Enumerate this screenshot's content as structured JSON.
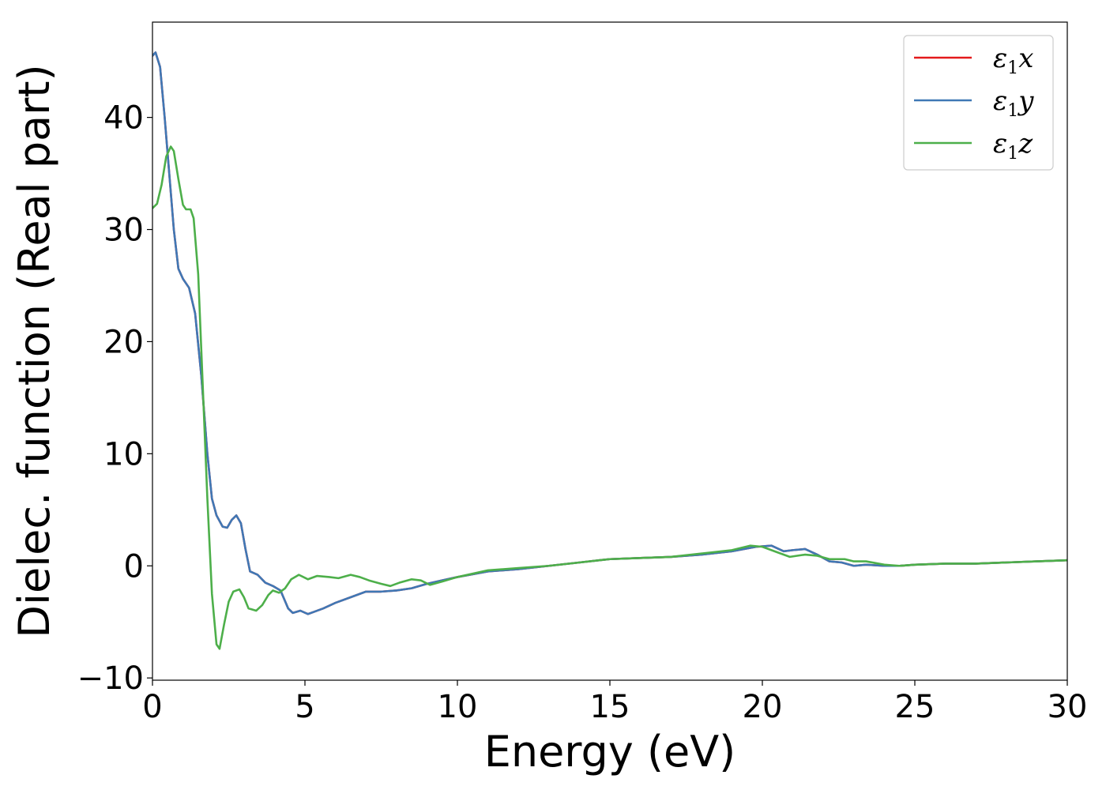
{
  "chart_data": {
    "type": "line",
    "title": "",
    "xlabel": "Energy (eV)",
    "ylabel": "Dielec. function (Real part)",
    "xlim": [
      0,
      30
    ],
    "ylim": [
      -10.2,
      48.5
    ],
    "x_ticks": [
      0,
      5,
      10,
      15,
      20,
      25,
      30
    ],
    "x_tick_labels": [
      "0",
      "5",
      "10",
      "15",
      "20",
      "25",
      "30"
    ],
    "y_ticks": [
      -10,
      0,
      10,
      20,
      30,
      40
    ],
    "y_tick_labels": [
      "−10",
      "0",
      "10",
      "20",
      "30",
      "40"
    ],
    "grid": false,
    "legend_position": "top-right",
    "series": [
      {
        "name": "ε1x",
        "legend": {
          "base": "ε",
          "sub": "1",
          "tail": "x"
        },
        "color": "#e41a1c",
        "points": [
          [
            0,
            45.5
          ],
          [
            0.1,
            45.8
          ],
          [
            0.25,
            44.5
          ],
          [
            0.4,
            40
          ],
          [
            0.55,
            35
          ],
          [
            0.7,
            30
          ],
          [
            0.85,
            26.5
          ],
          [
            1.0,
            25.6
          ],
          [
            1.2,
            24.8
          ],
          [
            1.4,
            22.5
          ],
          [
            1.6,
            17
          ],
          [
            1.8,
            10
          ],
          [
            1.95,
            6
          ],
          [
            2.1,
            4.5
          ],
          [
            2.3,
            3.5
          ],
          [
            2.45,
            3.4
          ],
          [
            2.6,
            4.1
          ],
          [
            2.75,
            4.5
          ],
          [
            2.9,
            3.8
          ],
          [
            3.05,
            1.5
          ],
          [
            3.2,
            -0.5
          ],
          [
            3.45,
            -0.8
          ],
          [
            3.7,
            -1.5
          ],
          [
            3.95,
            -1.8
          ],
          [
            4.2,
            -2.2
          ],
          [
            4.45,
            -3.8
          ],
          [
            4.6,
            -4.2
          ],
          [
            4.85,
            -4.0
          ],
          [
            5.1,
            -4.3
          ],
          [
            5.3,
            -4.1
          ],
          [
            5.6,
            -3.8
          ],
          [
            6.0,
            -3.3
          ],
          [
            6.5,
            -2.8
          ],
          [
            7.0,
            -2.3
          ],
          [
            7.5,
            -2.3
          ],
          [
            8.0,
            -2.2
          ],
          [
            8.5,
            -2.0
          ],
          [
            9.0,
            -1.6
          ],
          [
            9.5,
            -1.3
          ],
          [
            10.0,
            -1.0
          ],
          [
            11,
            -0.5
          ],
          [
            12,
            -0.3
          ],
          [
            13,
            0.0
          ],
          [
            14,
            0.3
          ],
          [
            15,
            0.6
          ],
          [
            16,
            0.7
          ],
          [
            17,
            0.8
          ],
          [
            18,
            1.0
          ],
          [
            19,
            1.3
          ],
          [
            19.8,
            1.7
          ],
          [
            20.3,
            1.8
          ],
          [
            20.7,
            1.3
          ],
          [
            21.0,
            1.4
          ],
          [
            21.4,
            1.5
          ],
          [
            21.8,
            1.0
          ],
          [
            22.2,
            0.4
          ],
          [
            22.6,
            0.3
          ],
          [
            23.0,
            0.0
          ],
          [
            23.4,
            0.1
          ],
          [
            24.0,
            0.0
          ],
          [
            24.5,
            0.0
          ],
          [
            25,
            0.1
          ],
          [
            26,
            0.2
          ],
          [
            27,
            0.2
          ],
          [
            28,
            0.3
          ],
          [
            29,
            0.4
          ],
          [
            30,
            0.5
          ]
        ]
      },
      {
        "name": "ε1y",
        "legend": {
          "base": "ε",
          "sub": "1",
          "tail": "y"
        },
        "color": "#3f78b5",
        "points": [
          [
            0,
            45.5
          ],
          [
            0.1,
            45.8
          ],
          [
            0.25,
            44.5
          ],
          [
            0.4,
            40
          ],
          [
            0.55,
            35
          ],
          [
            0.7,
            30
          ],
          [
            0.85,
            26.5
          ],
          [
            1.0,
            25.6
          ],
          [
            1.2,
            24.8
          ],
          [
            1.4,
            22.5
          ],
          [
            1.6,
            17
          ],
          [
            1.8,
            10
          ],
          [
            1.95,
            6
          ],
          [
            2.1,
            4.5
          ],
          [
            2.3,
            3.5
          ],
          [
            2.45,
            3.4
          ],
          [
            2.6,
            4.1
          ],
          [
            2.75,
            4.5
          ],
          [
            2.9,
            3.8
          ],
          [
            3.05,
            1.5
          ],
          [
            3.2,
            -0.5
          ],
          [
            3.45,
            -0.8
          ],
          [
            3.7,
            -1.5
          ],
          [
            3.95,
            -1.8
          ],
          [
            4.2,
            -2.2
          ],
          [
            4.45,
            -3.8
          ],
          [
            4.6,
            -4.2
          ],
          [
            4.85,
            -4.0
          ],
          [
            5.1,
            -4.3
          ],
          [
            5.3,
            -4.1
          ],
          [
            5.6,
            -3.8
          ],
          [
            6.0,
            -3.3
          ],
          [
            6.5,
            -2.8
          ],
          [
            7.0,
            -2.3
          ],
          [
            7.5,
            -2.3
          ],
          [
            8.0,
            -2.2
          ],
          [
            8.5,
            -2.0
          ],
          [
            9.0,
            -1.6
          ],
          [
            9.5,
            -1.3
          ],
          [
            10.0,
            -1.0
          ],
          [
            11,
            -0.5
          ],
          [
            12,
            -0.3
          ],
          [
            13,
            0.0
          ],
          [
            14,
            0.3
          ],
          [
            15,
            0.6
          ],
          [
            16,
            0.7
          ],
          [
            17,
            0.8
          ],
          [
            18,
            1.0
          ],
          [
            19,
            1.3
          ],
          [
            19.8,
            1.7
          ],
          [
            20.3,
            1.8
          ],
          [
            20.7,
            1.3
          ],
          [
            21.0,
            1.4
          ],
          [
            21.4,
            1.5
          ],
          [
            21.8,
            1.0
          ],
          [
            22.2,
            0.4
          ],
          [
            22.6,
            0.3
          ],
          [
            23.0,
            0.0
          ],
          [
            23.4,
            0.1
          ],
          [
            24.0,
            0.0
          ],
          [
            24.5,
            0.0
          ],
          [
            25,
            0.1
          ],
          [
            26,
            0.2
          ],
          [
            27,
            0.2
          ],
          [
            28,
            0.3
          ],
          [
            29,
            0.4
          ],
          [
            30,
            0.5
          ]
        ]
      },
      {
        "name": "ε1z",
        "legend": {
          "base": "ε",
          "sub": "1",
          "tail": "z"
        },
        "color": "#4daf4a",
        "points": [
          [
            0,
            31.9
          ],
          [
            0.15,
            32.3
          ],
          [
            0.3,
            34
          ],
          [
            0.45,
            36.5
          ],
          [
            0.6,
            37.4
          ],
          [
            0.7,
            37.0
          ],
          [
            0.85,
            34.5
          ],
          [
            1.0,
            32.2
          ],
          [
            1.1,
            31.8
          ],
          [
            1.25,
            31.8
          ],
          [
            1.35,
            31.0
          ],
          [
            1.5,
            26
          ],
          [
            1.65,
            16
          ],
          [
            1.8,
            6
          ],
          [
            1.95,
            -2.5
          ],
          [
            2.1,
            -7.0
          ],
          [
            2.2,
            -7.4
          ],
          [
            2.35,
            -5.2
          ],
          [
            2.5,
            -3.2
          ],
          [
            2.65,
            -2.3
          ],
          [
            2.85,
            -2.1
          ],
          [
            3.0,
            -2.8
          ],
          [
            3.15,
            -3.8
          ],
          [
            3.4,
            -4.0
          ],
          [
            3.6,
            -3.5
          ],
          [
            3.8,
            -2.6
          ],
          [
            3.95,
            -2.2
          ],
          [
            4.15,
            -2.4
          ],
          [
            4.35,
            -2.0
          ],
          [
            4.55,
            -1.2
          ],
          [
            4.8,
            -0.8
          ],
          [
            5.1,
            -1.2
          ],
          [
            5.4,
            -0.9
          ],
          [
            5.8,
            -1.0
          ],
          [
            6.1,
            -1.1
          ],
          [
            6.5,
            -0.8
          ],
          [
            6.8,
            -1.0
          ],
          [
            7.1,
            -1.3
          ],
          [
            7.5,
            -1.6
          ],
          [
            7.8,
            -1.8
          ],
          [
            8.1,
            -1.5
          ],
          [
            8.5,
            -1.2
          ],
          [
            8.8,
            -1.3
          ],
          [
            9.1,
            -1.7
          ],
          [
            9.5,
            -1.4
          ],
          [
            10.0,
            -1.0
          ],
          [
            11,
            -0.4
          ],
          [
            12,
            -0.2
          ],
          [
            13,
            0.0
          ],
          [
            14,
            0.3
          ],
          [
            15,
            0.6
          ],
          [
            16,
            0.7
          ],
          [
            17,
            0.8
          ],
          [
            18,
            1.1
          ],
          [
            19,
            1.4
          ],
          [
            19.6,
            1.8
          ],
          [
            20.0,
            1.7
          ],
          [
            20.5,
            1.2
          ],
          [
            20.9,
            0.8
          ],
          [
            21.4,
            1.0
          ],
          [
            21.8,
            0.9
          ],
          [
            22.2,
            0.6
          ],
          [
            22.7,
            0.6
          ],
          [
            23.0,
            0.4
          ],
          [
            23.4,
            0.4
          ],
          [
            24.0,
            0.1
          ],
          [
            24.5,
            0.0
          ],
          [
            25,
            0.1
          ],
          [
            26,
            0.2
          ],
          [
            27,
            0.2
          ],
          [
            28,
            0.3
          ],
          [
            29,
            0.4
          ],
          [
            30,
            0.5
          ]
        ]
      }
    ]
  }
}
